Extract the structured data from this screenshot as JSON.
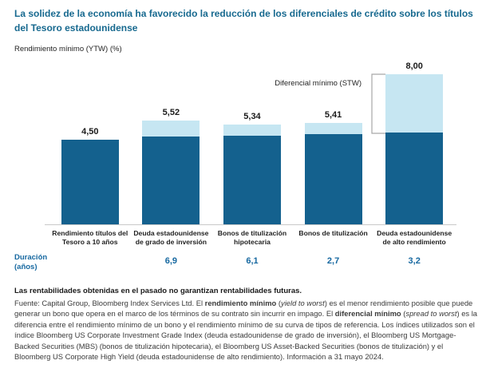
{
  "title": "La solidez de la economía ha favorecido la reducción de los diferenciales de crédito sobre los títulos del Tesoro estadounidense",
  "y_axis_label": "Rendimiento mínimo (YTW) (%)",
  "annotation_label": "Diferencial mínimo (STW)",
  "duration_label": "Duración (años)",
  "colors": {
    "bar_dark": "#14618E",
    "bar_light": "#C6E6F2",
    "title_blue": "#17698F",
    "duration_blue": "#1668A0"
  },
  "chart_data": {
    "type": "bar",
    "stacked": true,
    "title": "La solidez de la economía ha favorecido la reducción de los diferenciales de crédito sobre los títulos del Tesoro estadounidense",
    "ylabel": "Rendimiento mínimo (YTW) (%)",
    "xlabel": "",
    "ylim": [
      0,
      8.5
    ],
    "grid": false,
    "legend_position": "none",
    "categories": [
      "Rendimiento títulos del Tesoro a 10 años",
      "Deuda estadounidense de grado de inversión",
      "Bonos de titulización hipotecaria",
      "Bonos de titulización",
      "Deuda estadounidense de alto rendimiento"
    ],
    "totals": [
      4.5,
      5.52,
      5.34,
      5.41,
      8.0
    ],
    "total_labels": [
      "4,50",
      "5,52",
      "5,34",
      "5,41",
      "8,00"
    ],
    "series": [
      {
        "name": "Rendimiento mínimo (YTW)",
        "values": [
          4.5,
          4.67,
          4.74,
          4.81,
          4.9
        ]
      },
      {
        "name": "Diferencial mínimo (STW)",
        "values": [
          0,
          0.85,
          0.6,
          0.6,
          3.1
        ]
      }
    ],
    "durations": [
      "",
      "6,9",
      "6,1",
      "2,7",
      "3,2"
    ]
  },
  "footer": {
    "bold_line": "Las rentabilidades obtenidas en el pasado no garantizan rentabilidades futuras.",
    "segments": [
      {
        "t": "Fuente: Capital Group, Bloomberg Index Services Ltd. El "
      },
      {
        "t": "rendimiento mínimo",
        "b": true
      },
      {
        "t": " ("
      },
      {
        "t": "yield to worst",
        "i": true
      },
      {
        "t": ") es el menor rendimiento posible que puede generar un bono que opera en el marco de los términos de su contrato sin incurrir en impago. El "
      },
      {
        "t": "diferencial mínimo",
        "b": true
      },
      {
        "t": " ("
      },
      {
        "t": "spread to worst",
        "i": true
      },
      {
        "t": ") es la diferencia entre el rendimiento mínimo de un bono y el rendimiento mínimo de su curva de tipos de referencia. Los índices utilizados son el índice Bloomberg US Corporate Investment Grade Index (deuda estadounidense de grado de inversión), el Bloomberg US Mortgage-Backed Securities (MBS) (bonos de titulización hipotecaria), el Bloomberg US Asset-Backed Securities (bonos de titulización) y el Bloomberg US Corporate High Yield (deuda estadounidense de alto rendimiento). Información a 31 mayo 2024."
      }
    ]
  }
}
